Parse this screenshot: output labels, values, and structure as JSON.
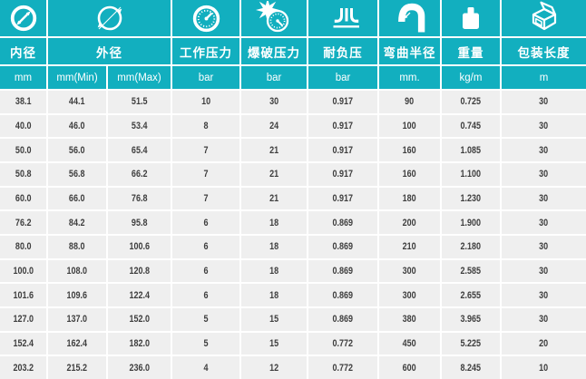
{
  "colors": {
    "teal": "#12afbf",
    "row_bg": "#efefef",
    "gap": "#ffffff",
    "data_text": "#3e3e3e",
    "header_text": "#ffffff"
  },
  "table": {
    "groups": [
      {
        "label": "内径",
        "icon": "inner-diameter-icon",
        "units": [
          "mm"
        ]
      },
      {
        "label": "外径",
        "icon": "outer-diameter-icon",
        "units": [
          "mm(Min)",
          "mm(Max)"
        ]
      },
      {
        "label": "工作压力",
        "icon": "pressure-gauge-icon",
        "units": [
          "bar"
        ]
      },
      {
        "label": "爆破压力",
        "icon": "burst-pressure-icon",
        "units": [
          "bar"
        ]
      },
      {
        "label": "耐负压",
        "icon": "vacuum-icon",
        "units": [
          "bar"
        ]
      },
      {
        "label": "弯曲半径",
        "icon": "bend-radius-icon",
        "units": [
          "mm."
        ]
      },
      {
        "label": "重量",
        "icon": "weight-icon",
        "units": [
          "kg/m"
        ]
      },
      {
        "label": "包装长度",
        "icon": "package-box-icon",
        "units": [
          "m"
        ]
      }
    ],
    "rows": [
      [
        "38.1",
        "44.1",
        "51.5",
        "10",
        "30",
        "0.917",
        "90",
        "0.725",
        "30"
      ],
      [
        "40.0",
        "46.0",
        "53.4",
        "8",
        "24",
        "0.917",
        "100",
        "0.745",
        "30"
      ],
      [
        "50.0",
        "56.0",
        "65.4",
        "7",
        "21",
        "0.917",
        "160",
        "1.085",
        "30"
      ],
      [
        "50.8",
        "56.8",
        "66.2",
        "7",
        "21",
        "0.917",
        "160",
        "1.100",
        "30"
      ],
      [
        "60.0",
        "66.0",
        "76.8",
        "7",
        "21",
        "0.917",
        "180",
        "1.230",
        "30"
      ],
      [
        "76.2",
        "84.2",
        "95.8",
        "6",
        "18",
        "0.869",
        "200",
        "1.900",
        "30"
      ],
      [
        "80.0",
        "88.0",
        "100.6",
        "6",
        "18",
        "0.869",
        "210",
        "2.180",
        "30"
      ],
      [
        "100.0",
        "108.0",
        "120.8",
        "6",
        "18",
        "0.869",
        "300",
        "2.585",
        "30"
      ],
      [
        "101.6",
        "109.6",
        "122.4",
        "6",
        "18",
        "0.869",
        "300",
        "2.655",
        "30"
      ],
      [
        "127.0",
        "137.0",
        "152.0",
        "5",
        "15",
        "0.869",
        "380",
        "3.965",
        "30"
      ],
      [
        "152.4",
        "162.4",
        "182.0",
        "5",
        "15",
        "0.772",
        "450",
        "5.225",
        "20"
      ],
      [
        "203.2",
        "215.2",
        "236.0",
        "4",
        "12",
        "0.772",
        "600",
        "8.245",
        "10"
      ]
    ]
  },
  "chart_data": {
    "type": "table",
    "columns": [
      "内径 mm",
      "外径 mm(Min)",
      "外径 mm(Max)",
      "工作压力 bar",
      "爆破压力 bar",
      "耐负压 bar",
      "弯曲半径 mm.",
      "重量 kg/m",
      "包装长度 m"
    ],
    "rows": [
      [
        38.1,
        44.1,
        51.5,
        10,
        30,
        0.917,
        90,
        0.725,
        30
      ],
      [
        40.0,
        46.0,
        53.4,
        8,
        24,
        0.917,
        100,
        0.745,
        30
      ],
      [
        50.0,
        56.0,
        65.4,
        7,
        21,
        0.917,
        160,
        1.085,
        30
      ],
      [
        50.8,
        56.8,
        66.2,
        7,
        21,
        0.917,
        160,
        1.1,
        30
      ],
      [
        60.0,
        66.0,
        76.8,
        7,
        21,
        0.917,
        180,
        1.23,
        30
      ],
      [
        76.2,
        84.2,
        95.8,
        6,
        18,
        0.869,
        200,
        1.9,
        30
      ],
      [
        80.0,
        88.0,
        100.6,
        6,
        18,
        0.869,
        210,
        2.18,
        30
      ],
      [
        100.0,
        108.0,
        120.8,
        6,
        18,
        0.869,
        300,
        2.585,
        30
      ],
      [
        101.6,
        109.6,
        122.4,
        6,
        18,
        0.869,
        300,
        2.655,
        30
      ],
      [
        127.0,
        137.0,
        152.0,
        5,
        15,
        0.869,
        380,
        3.965,
        30
      ],
      [
        152.4,
        162.4,
        182.0,
        5,
        15,
        0.772,
        450,
        5.225,
        20
      ],
      [
        203.2,
        215.2,
        236.0,
        4,
        12,
        0.772,
        600,
        8.245,
        10
      ]
    ]
  }
}
